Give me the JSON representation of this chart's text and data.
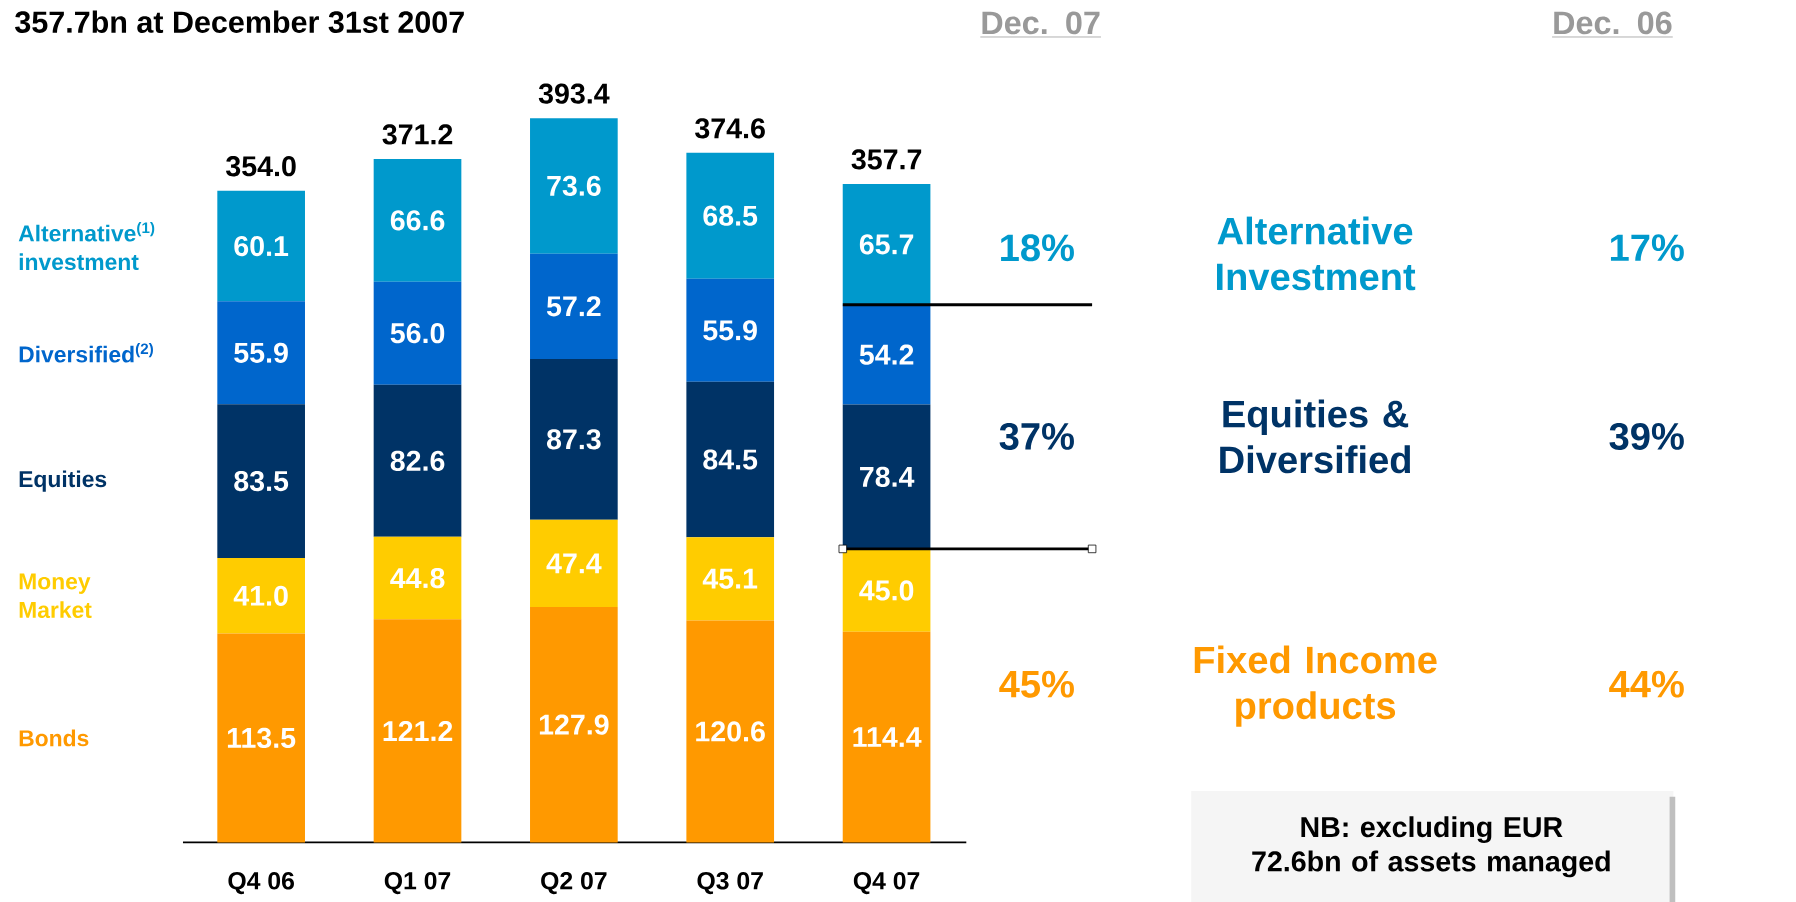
{
  "chart_data": {
    "type": "bar",
    "stacked": true,
    "title": "357.7bn at December 31st 2007",
    "categories": [
      "Q4 06",
      "Q1 07",
      "Q2 07",
      "Q3 07",
      "Q4 07"
    ],
    "series": [
      {
        "name": "Bonds",
        "color": "#ff9900",
        "values": [
          113.5,
          121.2,
          127.9,
          120.6,
          114.4
        ],
        "value_labels": [
          "113.5",
          "121.2",
          "127.9",
          "120.6",
          "114.4"
        ]
      },
      {
        "name": "Money Market",
        "color": "#ffcc00",
        "values": [
          41.0,
          44.8,
          47.4,
          45.1,
          45.0
        ],
        "value_labels": [
          "41.0",
          "44.8",
          "47.4",
          "45.1",
          "45.0"
        ]
      },
      {
        "name": "Equities",
        "color": "#003366",
        "values": [
          83.5,
          82.6,
          87.3,
          84.5,
          78.4
        ],
        "value_labels": [
          "83.5",
          "82.6",
          "87.3",
          "84.5",
          "78.4"
        ]
      },
      {
        "name": "Diversified$^{(2)}$",
        "color": "#0066cc",
        "values": [
          55.9,
          56.0,
          57.2,
          55.9,
          54.2
        ],
        "value_labels": [
          "55.9",
          "56.0",
          "57.2",
          "55.9",
          "54.2"
        ]
      },
      {
        "name": "Alternative$^{(1)}$ investment",
        "color": "#0099cc",
        "values": [
          60.1,
          66.6,
          73.6,
          68.5,
          65.7
        ],
        "value_labels": [
          "60.1",
          "66.6",
          "73.6",
          "68.5",
          "65.7"
        ]
      }
    ],
    "totals": [
      "354.0",
      "371.2",
      "393.4",
      "374.6",
      "357.7"
    ],
    "annotations": [
      "Dec. 07",
      "Dec. 06",
      "18%",
      "Alternative Investment",
      "17%",
      "37%",
      "Equities & Diversified",
      "39%",
      "45%",
      "Fixed Income products",
      "44%",
      "NB: excluding EUR 72.6bn of assets managed"
    ]
  }
}
